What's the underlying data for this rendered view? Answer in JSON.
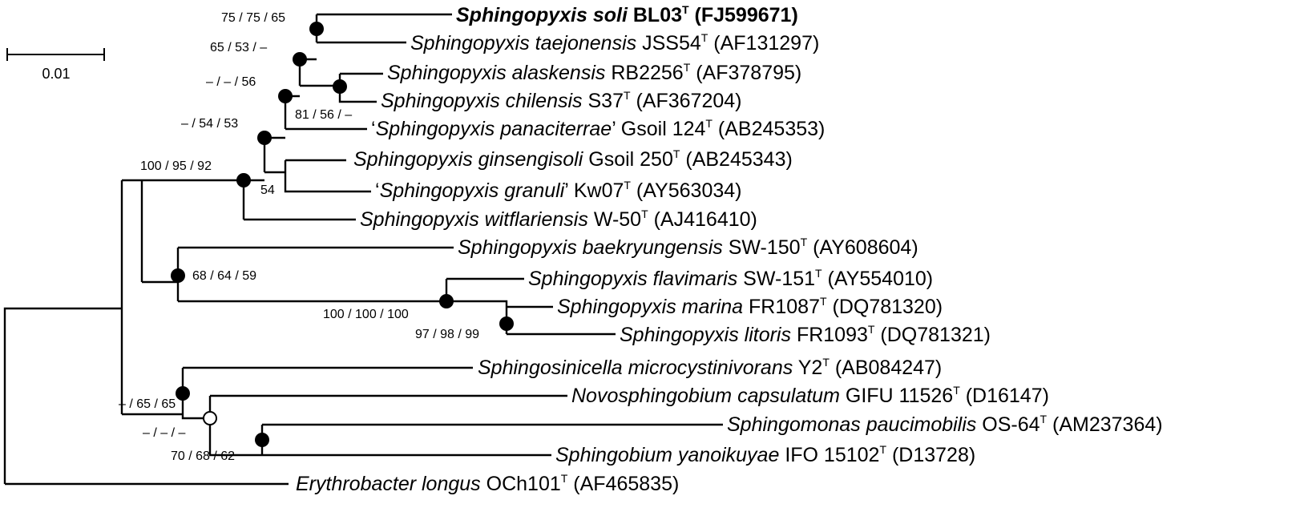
{
  "scale_bar": {
    "label": "0.01"
  },
  "taxa": [
    {
      "species": "Sphingopyxis soli",
      "strain": "BL03",
      "type_mark": "T",
      "accession": "(FJ599671)",
      "bold": true,
      "quoted": false
    },
    {
      "species": "Sphingopyxis taejonensis",
      "strain": "JSS54",
      "type_mark": "T",
      "accession": "(AF131297)",
      "bold": false,
      "quoted": false
    },
    {
      "species": "Sphingopyxis alaskensis",
      "strain": "RB2256",
      "type_mark": "T",
      "accession": "(AF378795)",
      "bold": false,
      "quoted": false
    },
    {
      "species": "Sphingopyxis chilensis",
      "strain": "S37",
      "type_mark": "T",
      "accession": "(AF367204)",
      "bold": false,
      "quoted": false
    },
    {
      "species": "Sphingopyxis panaciterrae",
      "strain": "Gsoil 124",
      "type_mark": "T",
      "accession": "(AB245353)",
      "bold": false,
      "quoted": true
    },
    {
      "species": "Sphingopyxis ginsengisoli",
      "strain": "Gsoil 250",
      "type_mark": "T",
      "accession": "(AB245343)",
      "bold": false,
      "quoted": false
    },
    {
      "species": "Sphingopyxis granuli",
      "strain": "Kw07",
      "type_mark": "T",
      "accession": "(AY563034)",
      "bold": false,
      "quoted": true
    },
    {
      "species": "Sphingopyxis witflariensis",
      "strain": "W-50",
      "type_mark": "T",
      "accession": "(AJ416410)",
      "bold": false,
      "quoted": false
    },
    {
      "species": "Sphingopyxis baekryungensis",
      "strain": "SW-150",
      "type_mark": "T",
      "accession": "(AY608604)",
      "bold": false,
      "quoted": false
    },
    {
      "species": "Sphingopyxis flavimaris",
      "strain": "SW-151",
      "type_mark": "T",
      "accession": "(AY554010)",
      "bold": false,
      "quoted": false
    },
    {
      "species": "Sphingopyxis marina",
      "strain": "FR1087",
      "type_mark": "T",
      "accession": "(DQ781320)",
      "bold": false,
      "quoted": false
    },
    {
      "species": "Sphingopyxis litoris",
      "strain": "FR1093",
      "type_mark": "T",
      "accession": "(DQ781321)",
      "bold": false,
      "quoted": false
    },
    {
      "species": "Sphingosinicella microcystinivorans",
      "strain": "Y2",
      "type_mark": "T",
      "accession": "(AB084247)",
      "bold": false,
      "quoted": false
    },
    {
      "species": "Novosphingobium capsulatum",
      "strain": "GIFU 11526",
      "type_mark": "T",
      "accession": "(D16147)",
      "bold": false,
      "quoted": false
    },
    {
      "species": "Sphingomonas paucimobilis",
      "strain": "OS-64",
      "type_mark": "T",
      "accession": "(AM237364)",
      "bold": false,
      "quoted": false
    },
    {
      "species": "Sphingobium yanoikuyae",
      "strain": "IFO 15102",
      "type_mark": "T",
      "accession": "(D13728)",
      "bold": false,
      "quoted": false
    },
    {
      "species": "Erythrobacter longus",
      "strain": "OCh101",
      "type_mark": "T",
      "accession": "(AF465835)",
      "bold": false,
      "quoted": false
    }
  ],
  "bootstrap": [
    "75 / 75 / 65",
    "65 / 53 / –",
    "– / – / 56",
    "81 / 56 / –",
    "– / 54 / 53",
    "54",
    "100 / 95 / 92",
    "68 / 64 / 59",
    "100 / 100 / 100",
    "97 / 98 / 99",
    "– / 65 / 65",
    "– / – / –",
    "70 / 68 / 62"
  ]
}
